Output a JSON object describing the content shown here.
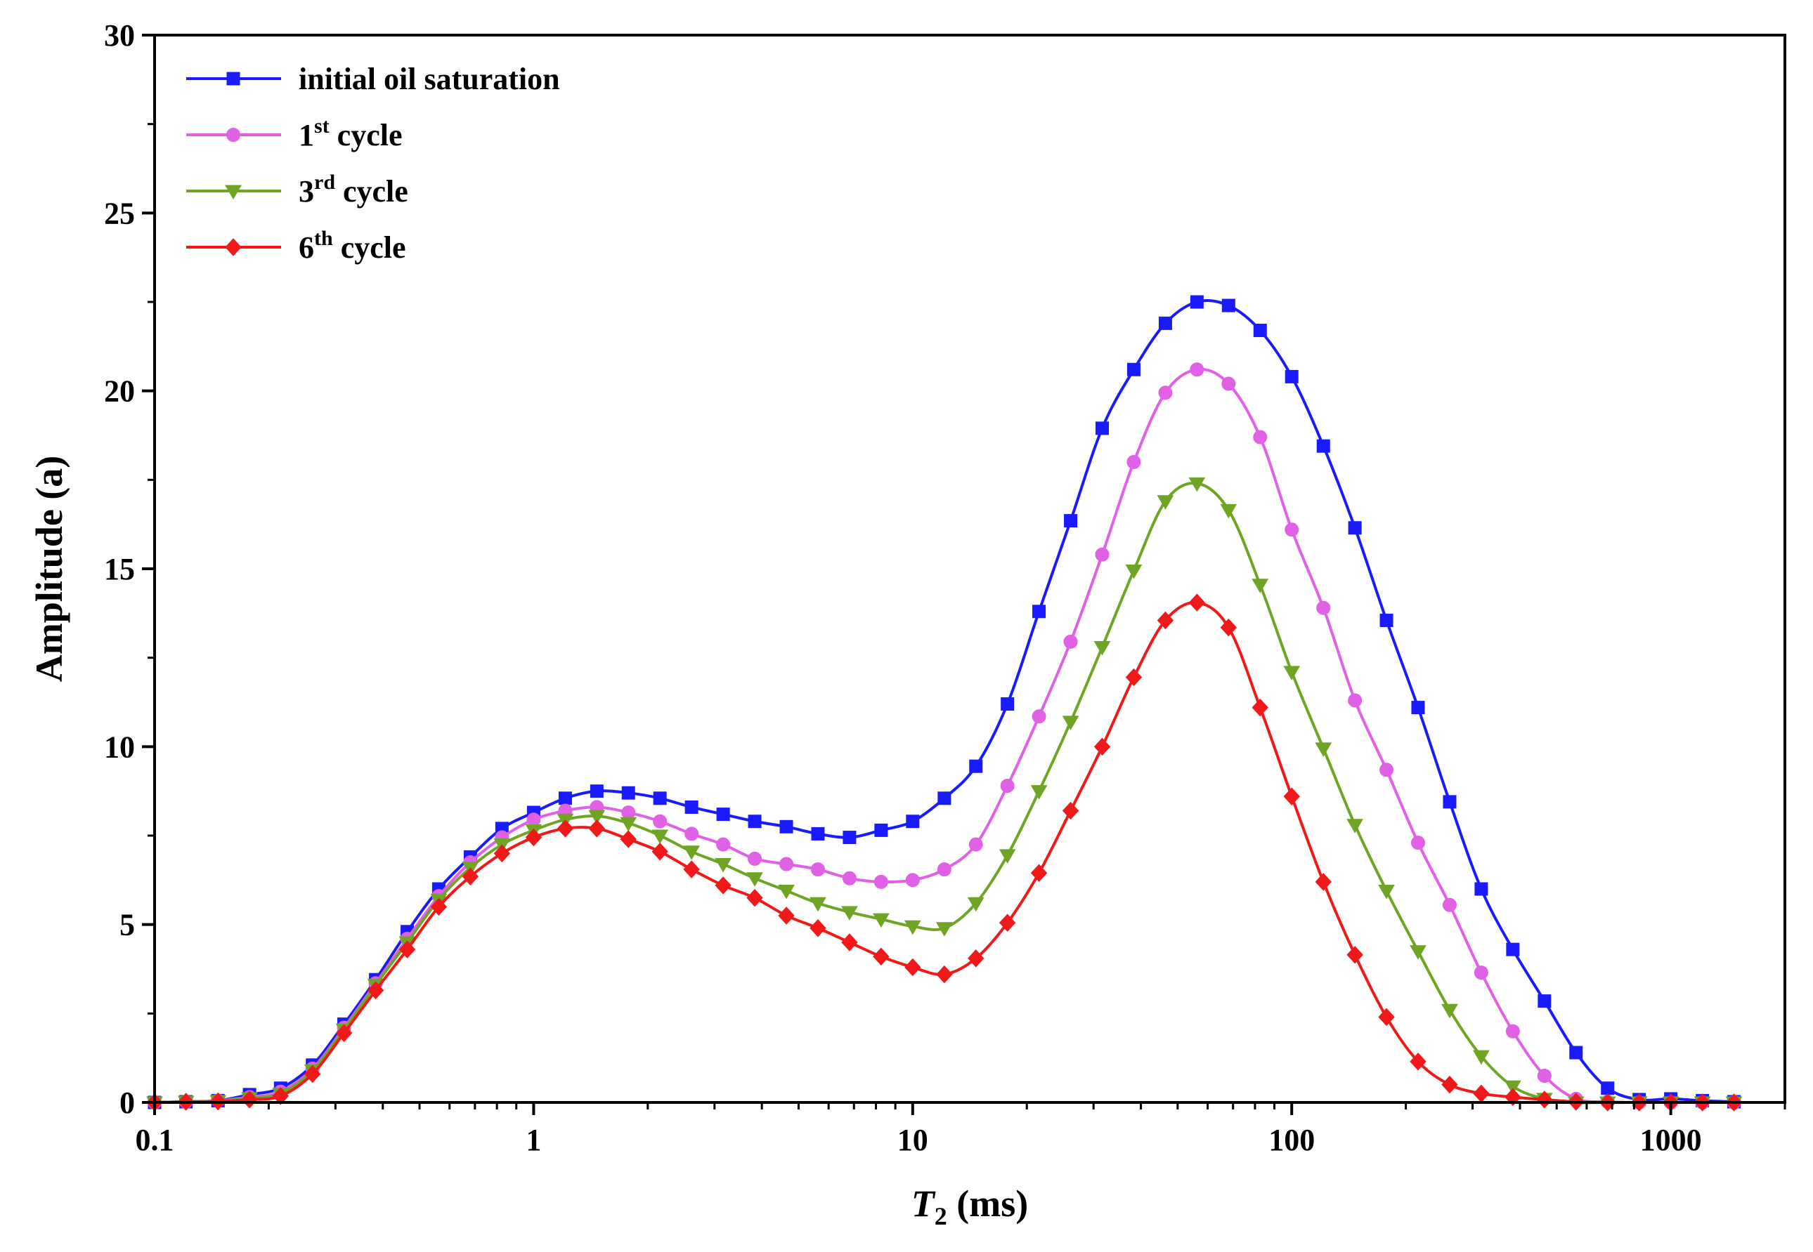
{
  "chart_data": {
    "type": "line",
    "title": "",
    "xlabel": {
      "main": "T",
      "sub": "2",
      "rest": " (ms)"
    },
    "ylabel": "Amplitude (a)",
    "xscale": "log",
    "xlim": [
      0.1,
      2000
    ],
    "ylim": [
      0,
      30
    ],
    "x_ticks": [
      0.1,
      1,
      10,
      100,
      1000
    ],
    "x_tick_labels": [
      "0.1",
      "1",
      "10",
      "100",
      "1000"
    ],
    "y_ticks": [
      0,
      5,
      10,
      15,
      20,
      25,
      30
    ],
    "y_tick_labels": [
      "0",
      "5",
      "10",
      "15",
      "20",
      "25",
      "30"
    ],
    "grid": false,
    "legend_position": "top-left",
    "x": [
      0.1,
      0.121,
      0.147,
      0.178,
      0.215,
      0.261,
      0.316,
      0.383,
      0.464,
      0.562,
      0.681,
      0.825,
      1.0,
      1.212,
      1.468,
      1.778,
      2.154,
      2.61,
      3.162,
      3.831,
      4.642,
      5.623,
      6.813,
      8.254,
      10.0,
      12.12,
      14.68,
      17.78,
      21.54,
      26.1,
      31.62,
      38.31,
      46.42,
      56.23,
      68.13,
      82.54,
      100.0,
      121.2,
      146.8,
      177.8,
      215.4,
      261.0,
      316.2,
      383.1,
      464.2,
      562.3,
      681.3,
      825.4,
      1000,
      1212,
      1468
    ],
    "series": [
      {
        "name": "initial oil saturation",
        "sup": "",
        "color": "#1a1aff",
        "marker": "square",
        "values": [
          0,
          0.02,
          0.05,
          0.22,
          0.4,
          1.05,
          2.2,
          3.45,
          4.8,
          6.0,
          6.9,
          7.7,
          8.15,
          8.55,
          8.75,
          8.7,
          8.55,
          8.3,
          8.1,
          7.9,
          7.75,
          7.55,
          7.45,
          7.65,
          7.9,
          8.55,
          9.45,
          11.2,
          13.8,
          16.35,
          18.95,
          20.6,
          21.9,
          22.5,
          22.4,
          21.7,
          20.4,
          18.45,
          16.15,
          13.55,
          11.1,
          8.45,
          6.0,
          4.3,
          2.85,
          1.4,
          0.4,
          0.08,
          0.1,
          0.05,
          0.02
        ]
      },
      {
        "name": "1",
        "sup": "st",
        "suffix": " cycle",
        "color": "#e060e6",
        "marker": "circle",
        "values": [
          0,
          0.02,
          0.05,
          0.15,
          0.3,
          0.95,
          2.1,
          3.35,
          4.6,
          5.8,
          6.75,
          7.45,
          7.95,
          8.2,
          8.3,
          8.15,
          7.9,
          7.55,
          7.25,
          6.85,
          6.7,
          6.55,
          6.3,
          6.2,
          6.25,
          6.55,
          7.25,
          8.9,
          10.85,
          12.95,
          15.4,
          18.0,
          19.95,
          20.6,
          20.2,
          18.7,
          16.1,
          13.9,
          11.3,
          9.35,
          7.3,
          5.55,
          3.65,
          2.0,
          0.75,
          0.1,
          0.02,
          0,
          0,
          0,
          0
        ]
      },
      {
        "name": "3",
        "sup": "rd",
        "suffix": " cycle",
        "color": "#6fa424",
        "marker": "triangle-down",
        "values": [
          0,
          0.02,
          0.04,
          0.12,
          0.25,
          0.9,
          2.05,
          3.3,
          4.5,
          5.7,
          6.6,
          7.25,
          7.65,
          7.95,
          8.05,
          7.85,
          7.5,
          7.05,
          6.7,
          6.3,
          5.95,
          5.6,
          5.35,
          5.15,
          4.95,
          4.9,
          5.6,
          6.95,
          8.75,
          10.7,
          12.8,
          14.95,
          16.9,
          17.4,
          16.65,
          14.55,
          12.1,
          9.95,
          7.8,
          5.95,
          4.25,
          2.6,
          1.3,
          0.45,
          0.1,
          0,
          0,
          0,
          0,
          0,
          0
        ]
      },
      {
        "name": "6",
        "sup": "th",
        "suffix": " cycle",
        "color": "#f01818",
        "marker": "diamond",
        "values": [
          0,
          0.02,
          0.03,
          0.08,
          0.18,
          0.8,
          1.95,
          3.15,
          4.3,
          5.5,
          6.35,
          7.0,
          7.45,
          7.7,
          7.7,
          7.4,
          7.05,
          6.55,
          6.1,
          5.75,
          5.25,
          4.9,
          4.5,
          4.1,
          3.8,
          3.6,
          4.05,
          5.05,
          6.45,
          8.2,
          10.0,
          11.95,
          13.55,
          14.05,
          13.35,
          11.1,
          8.6,
          6.2,
          4.15,
          2.4,
          1.15,
          0.5,
          0.25,
          0.15,
          0.08,
          0.02,
          0,
          0,
          0,
          0,
          0
        ]
      }
    ]
  }
}
